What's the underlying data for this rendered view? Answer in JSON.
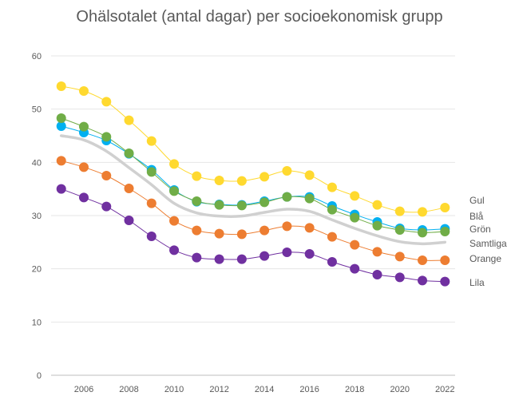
{
  "chart_data": {
    "type": "line",
    "title": "Ohälsotalet (antal dagar) per socioekonomisk grupp",
    "xlabel": "",
    "ylabel": "",
    "ylim": [
      0,
      60
    ],
    "yticks": [
      0,
      10,
      20,
      30,
      40,
      50,
      60
    ],
    "xticks": [
      2006,
      2008,
      2010,
      2012,
      2014,
      2016,
      2018,
      2020,
      2022
    ],
    "x": [
      2005,
      2006,
      2007,
      2008,
      2009,
      2010,
      2011,
      2012,
      2013,
      2014,
      2015,
      2016,
      2017,
      2018,
      2019,
      2020,
      2021,
      2022
    ],
    "grid": "horizontal",
    "legend": "right, labels at line ends",
    "series": [
      {
        "name": "Gul",
        "color": "#FFD92F",
        "markers": true,
        "values": [
          54.3,
          53.4,
          51.4,
          47.9,
          44.0,
          39.7,
          37.4,
          36.6,
          36.5,
          37.3,
          38.4,
          37.6,
          35.3,
          33.7,
          32.0,
          30.8,
          30.7,
          31.5
        ]
      },
      {
        "name": "Blå",
        "color": "#00B0F0",
        "markers": true,
        "values": [
          46.8,
          45.6,
          44.1,
          41.6,
          38.6,
          34.8,
          32.6,
          32.1,
          32.0,
          32.7,
          33.5,
          33.5,
          31.8,
          30.2,
          28.8,
          27.6,
          27.3,
          27.5
        ]
      },
      {
        "name": "Grön",
        "color": "#70AD47",
        "markers": true,
        "values": [
          48.3,
          46.7,
          44.8,
          41.7,
          38.2,
          34.6,
          32.7,
          32.0,
          31.9,
          32.5,
          33.5,
          33.2,
          31.1,
          29.6,
          28.1,
          27.3,
          26.8,
          27.0
        ]
      },
      {
        "name": "Samtliga",
        "color": "#D0D0D0",
        "markers": false,
        "values": [
          45.0,
          44.2,
          42.1,
          39.0,
          35.8,
          32.3,
          30.5,
          29.9,
          29.9,
          30.6,
          31.2,
          30.8,
          29.2,
          27.6,
          26.2,
          25.1,
          24.7,
          25.0
        ]
      },
      {
        "name": "Orange",
        "color": "#ED7D31",
        "markers": true,
        "values": [
          40.3,
          39.1,
          37.5,
          35.1,
          32.3,
          29.0,
          27.2,
          26.6,
          26.5,
          27.2,
          28.0,
          27.7,
          26.0,
          24.5,
          23.2,
          22.3,
          21.6,
          21.6
        ]
      },
      {
        "name": "Lila",
        "color": "#7030A0",
        "markers": true,
        "values": [
          35.0,
          33.4,
          31.7,
          29.1,
          26.1,
          23.5,
          22.1,
          21.8,
          21.8,
          22.4,
          23.1,
          22.8,
          21.3,
          20.0,
          18.9,
          18.4,
          17.8,
          17.6
        ]
      }
    ]
  }
}
